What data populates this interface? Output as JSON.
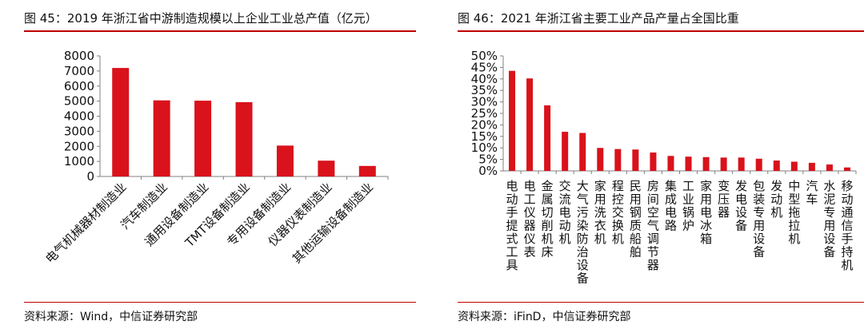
{
  "figures": [
    {
      "title": "图 45：2019 年浙江省中游制造规模以上企业工业总产值（亿元）",
      "source": "资料来源：Wind，中信证券研究部"
    },
    {
      "title": "图 46：2021 年浙江省主要工业产品产量占全国比重",
      "source": "资料来源：iFinD，中信证券研究部"
    }
  ],
  "colors": {
    "accent": "#c00000",
    "bar": "#d9121b",
    "axis": "#808080"
  },
  "chart_data": [
    {
      "type": "bar",
      "title": "图 45：2019 年浙江省中游制造规模以上企业工业总产值（亿元）",
      "xlabel": "",
      "ylabel": "",
      "ylim": [
        0,
        8000
      ],
      "yticks": [
        "0",
        "1000",
        "2000",
        "3000",
        "4000",
        "5000",
        "6000",
        "7000",
        "8000"
      ],
      "grid": false,
      "categories": [
        "电气机械器材制造业",
        "汽车制造业",
        "通用设备制造业",
        "TMT设备制造业",
        "专用设备制造业",
        "仪器仪表制造业",
        "其他运输设备制造业"
      ],
      "values": [
        7200,
        5050,
        5030,
        4930,
        2050,
        1050,
        700
      ]
    },
    {
      "type": "bar",
      "title": "图 46：2021 年浙江省主要工业产品产量占全国比重",
      "xlabel": "",
      "ylabel": "",
      "ylim": [
        0,
        50
      ],
      "yticks": [
        "0%",
        "5%",
        "10%",
        "15%",
        "20%",
        "25%",
        "30%",
        "35%",
        "40%",
        "45%",
        "50%"
      ],
      "grid": false,
      "categories": [
        "电动手提式工具",
        "电工仪器仪表",
        "金属切削机床",
        "交流电动机",
        "大气污染防治设备",
        "家用洗衣机",
        "程控交换机",
        "民用钢质船舶",
        "房间空气调节器",
        "集成电路",
        "工业锅炉",
        "家用电冰箱",
        "变压器",
        "发电设备",
        "包装专用设备",
        "发动机",
        "中型拖拉机",
        "汽车",
        "水泥专用设备",
        "移动通信手持机"
      ],
      "values": [
        43.5,
        40.2,
        28.5,
        17.0,
        16.5,
        10.0,
        9.5,
        9.3,
        8.0,
        6.5,
        6.2,
        6.0,
        5.8,
        5.8,
        5.3,
        4.5,
        4.0,
        3.5,
        2.8,
        1.5
      ]
    }
  ]
}
